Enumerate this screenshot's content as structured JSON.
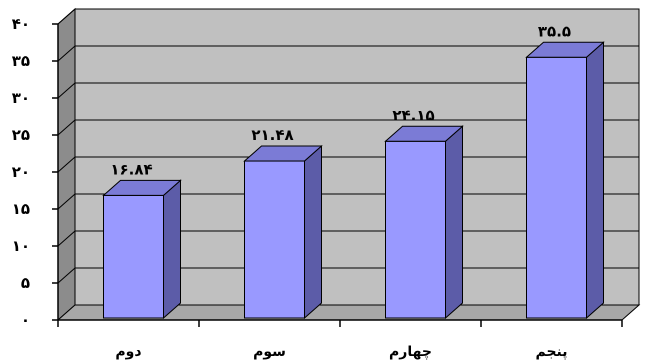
{
  "chart_data": {
    "type": "bar",
    "style": "3d-column",
    "categories": [
      "دوم",
      "سوم",
      "چهارم",
      "پنجم"
    ],
    "values": [
      16.84,
      21.48,
      24.15,
      35.5
    ],
    "value_labels": [
      "۱۶.۸۴",
      "۲۱.۴۸",
      "۲۴.۱۵",
      "۳۵.۵"
    ],
    "yticks": [
      0,
      5,
      10,
      15,
      20,
      25,
      30,
      35,
      40
    ],
    "ytick_labels": [
      "۰",
      "۵",
      "۱۰",
      "۱۵",
      "۲۰",
      "۲۵",
      "۳۰",
      "۳۵",
      "۴۰"
    ],
    "ylim": [
      0,
      40
    ],
    "grid": true,
    "legend": "none",
    "colors": {
      "bar_front": "#9999ff",
      "bar_side": "#5c5ca8",
      "bar_top": "#7b7bd6",
      "wall": "#c0c0c0",
      "floor": "#a8a8a8",
      "gridline": "#000000"
    }
  }
}
